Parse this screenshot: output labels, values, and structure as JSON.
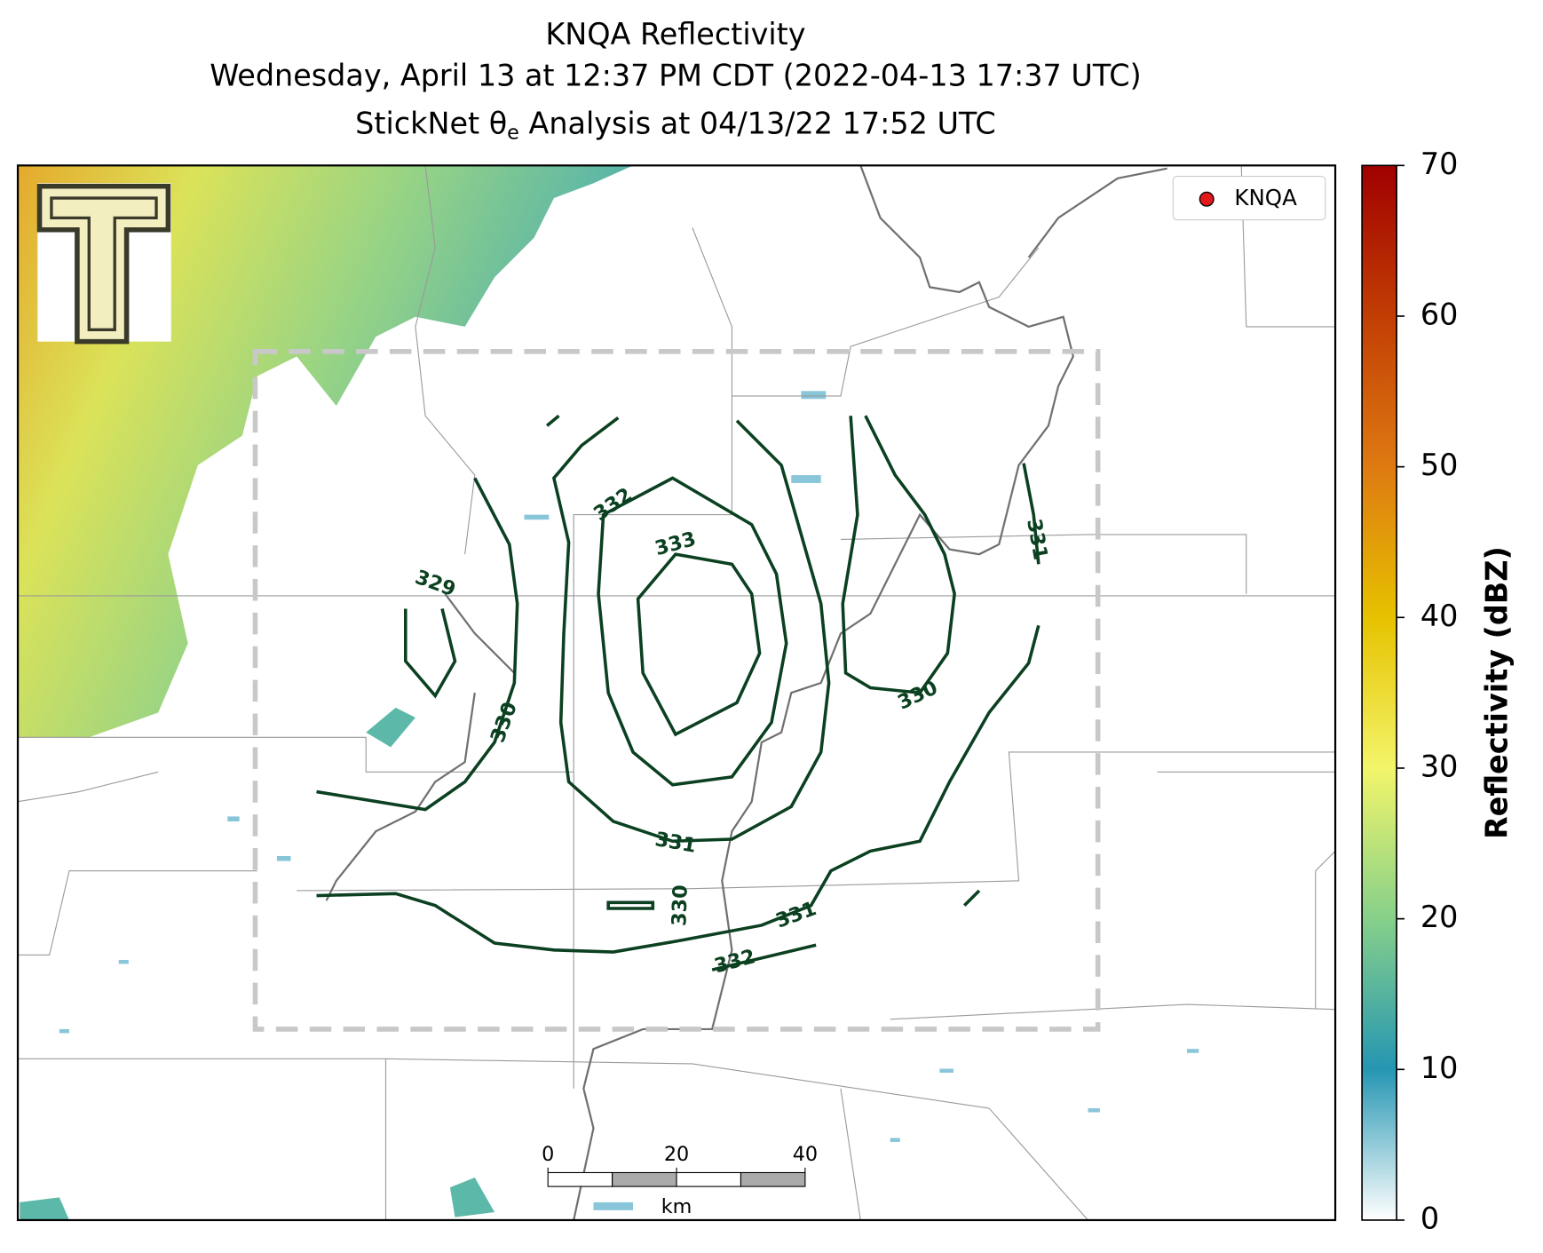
{
  "title": [
    "KNQA Reflectivity",
    "Wednesday, April 13 at 12:37 PM CDT (2022-04-13 17:37 UTC)",
    [
      "StickNet θ",
      "e",
      " Analysis at 04/13/22 17:52 UTC"
    ]
  ],
  "legend": {
    "label": "KNQA",
    "color": "#e31a1c",
    "position": "upper right"
  },
  "colorbar": {
    "label": "Reflectivity (dBZ)",
    "vlim": [
      0,
      70
    ],
    "ticks": [
      0,
      10,
      20,
      30,
      40,
      50,
      60,
      70
    ],
    "colors": [
      "#ffffff",
      "#2596b2",
      "#86d08a",
      "#f3f56a",
      "#e6c200",
      "#de7a12",
      "#c23e04",
      "#a00000"
    ]
  },
  "scale_bar": {
    "unit": "km",
    "range": [
      0,
      40
    ],
    "ticks": [
      0,
      20,
      40
    ]
  },
  "contour_labels": [
    329,
    330,
    332,
    333,
    330,
    331,
    331,
    330,
    331,
    332
  ]
}
